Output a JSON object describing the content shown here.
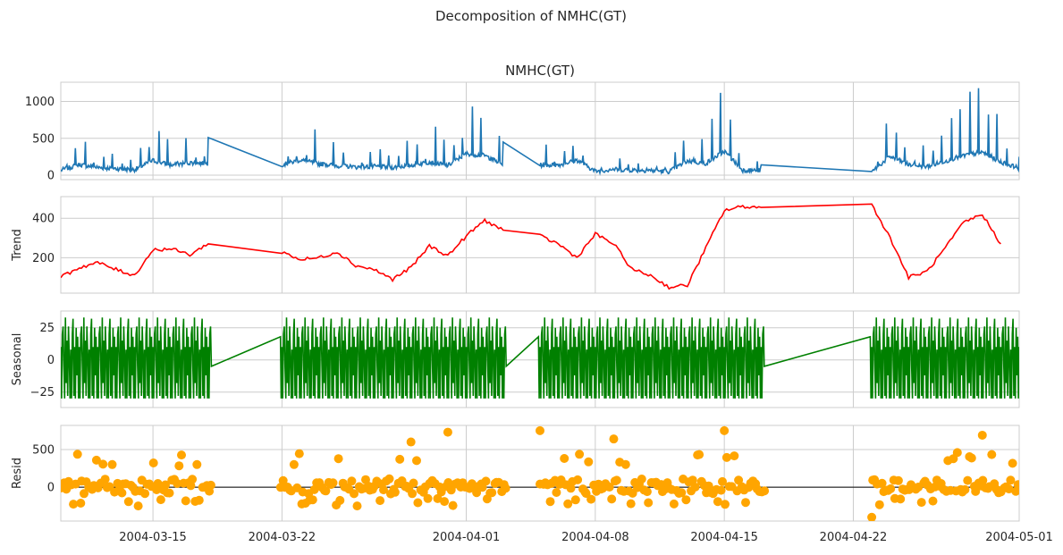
{
  "suptitle": "Decomposition of NMHC(GT)",
  "chart_data": [
    {
      "type": "line",
      "panel": "observed",
      "title": "NMHC(GT)",
      "ylabel": "",
      "ylim": [
        -60,
        1260
      ],
      "yticks": [
        0,
        500,
        1000
      ],
      "ytick_labels": [
        "0",
        "500",
        "1000"
      ],
      "color": "#1f77b4",
      "x": [
        "2004-03-10",
        "2004-03-11",
        "2004-03-12",
        "2004-03-13",
        "2004-03-14",
        "2004-03-15",
        "2004-03-16",
        "2004-03-17",
        "2004-03-18",
        "2004-03-22",
        "2004-03-23",
        "2004-03-24",
        "2004-03-25",
        "2004-03-26",
        "2004-03-27",
        "2004-03-28",
        "2004-03-29",
        "2004-03-30",
        "2004-03-31",
        "2004-04-01",
        "2004-04-02",
        "2004-04-03",
        "2004-04-05",
        "2004-04-06",
        "2004-04-07",
        "2004-04-08",
        "2004-04-09",
        "2004-04-10",
        "2004-04-11",
        "2004-04-12",
        "2004-04-13",
        "2004-04-14",
        "2004-04-15",
        "2004-04-16",
        "2004-04-17",
        "2004-04-23",
        "2004-04-24",
        "2004-04-25",
        "2004-04-26",
        "2004-04-27",
        "2004-04-28",
        "2004-04-29",
        "2004-04-30",
        "2004-05-01"
      ],
      "values": [
        150,
        460,
        300,
        240,
        180,
        680,
        420,
        560,
        510,
        450,
        700,
        500,
        400,
        320,
        350,
        300,
        420,
        600,
        400,
        1050,
        950,
        450,
        430,
        430,
        700,
        90,
        200,
        160,
        140,
        80,
        650,
        520,
        1180,
        150,
        140,
        60,
        900,
        450,
        350,
        650,
        950,
        1130,
        600,
        250
      ]
    },
    {
      "type": "line",
      "panel": "trend",
      "title": "",
      "ylabel": "Trend",
      "ylim": [
        20,
        510
      ],
      "yticks": [
        200,
        400
      ],
      "ytick_labels": [
        "200",
        "400"
      ],
      "color": "#ff0000",
      "x": [
        "2004-03-10",
        "2004-03-11",
        "2004-03-12",
        "2004-03-13",
        "2004-03-14",
        "2004-03-15",
        "2004-03-16",
        "2004-03-17",
        "2004-03-18",
        "2004-03-22",
        "2004-03-23",
        "2004-03-24",
        "2004-03-25",
        "2004-03-26",
        "2004-03-27",
        "2004-03-28",
        "2004-03-29",
        "2004-03-30",
        "2004-03-31",
        "2004-04-01",
        "2004-04-02",
        "2004-04-03",
        "2004-04-05",
        "2004-04-06",
        "2004-04-07",
        "2004-04-08",
        "2004-04-09",
        "2004-04-10",
        "2004-04-11",
        "2004-04-12",
        "2004-04-13",
        "2004-04-14",
        "2004-04-15",
        "2004-04-16",
        "2004-04-17",
        "2004-04-23",
        "2004-04-24",
        "2004-04-25",
        "2004-04-26",
        "2004-04-27",
        "2004-04-28",
        "2004-04-29",
        "2004-04-30"
      ],
      "values": [
        100,
        150,
        175,
        140,
        110,
        240,
        245,
        215,
        270,
        230,
        190,
        200,
        230,
        160,
        140,
        90,
        150,
        260,
        210,
        310,
        390,
        340,
        310,
        270,
        200,
        320,
        270,
        140,
        110,
        50,
        60,
        250,
        440,
        460,
        455,
        470,
        300,
        100,
        130,
        250,
        380,
        420,
        270
      ]
    },
    {
      "type": "line",
      "panel": "seasonal",
      "title": "",
      "ylabel": "Seasonal",
      "ylim": [
        -37,
        38
      ],
      "yticks": [
        -25,
        0,
        25
      ],
      "ytick_labels": [
        "−25",
        "0",
        "25"
      ],
      "color": "#008000",
      "period_hours": 24,
      "pattern": [
        10,
        -30,
        20,
        26,
        -5,
        -30,
        33,
        -18,
        15,
        -28,
        26,
        5,
        -30,
        8,
        -30,
        20,
        32,
        -28,
        10,
        -30,
        25,
        -12,
        18,
        -30
      ],
      "x_range": [
        "2004-03-10",
        "2004-05-01"
      ]
    },
    {
      "type": "scatter",
      "panel": "resid",
      "title": "",
      "ylabel": "Resid",
      "ylim": [
        -450,
        820
      ],
      "yticks": [
        0,
        500
      ],
      "ytick_labels": [
        "0",
        "500"
      ],
      "color": "#ffa500",
      "baseline": 0,
      "x_range": [
        "2004-03-10",
        "2004-05-01"
      ],
      "notable_points": [
        {
          "x": "2004-03-31",
          "y": 730
        },
        {
          "x": "2004-04-05",
          "y": 750
        },
        {
          "x": "2004-04-15",
          "y": 750
        },
        {
          "x": "2004-03-29",
          "y": 600
        },
        {
          "x": "2004-04-09",
          "y": 640
        },
        {
          "x": "2004-04-29",
          "y": 690
        },
        {
          "x": "2004-04-23",
          "y": -400
        }
      ]
    }
  ],
  "x_axis": {
    "ticks": [
      "2004-03-15",
      "2004-03-22",
      "2004-04-01",
      "2004-04-08",
      "2004-04-15",
      "2004-04-22",
      "2004-05-01"
    ],
    "tick_labels": [
      "2004-03-15",
      "2004-03-22",
      "2004-04-01",
      "2004-04-08",
      "2004-04-15",
      "2004-04-22",
      "2004-05-01"
    ],
    "range": [
      "2004-03-10",
      "2004-05-01"
    ],
    "gaps": [
      [
        "2004-03-18",
        "2004-03-22"
      ],
      [
        "2004-04-03",
        "2004-04-05"
      ],
      [
        "2004-04-17",
        "2004-04-23"
      ]
    ]
  },
  "style": {
    "grid": true,
    "grid_color": "#cccccc",
    "frame_color": "#cccccc"
  }
}
